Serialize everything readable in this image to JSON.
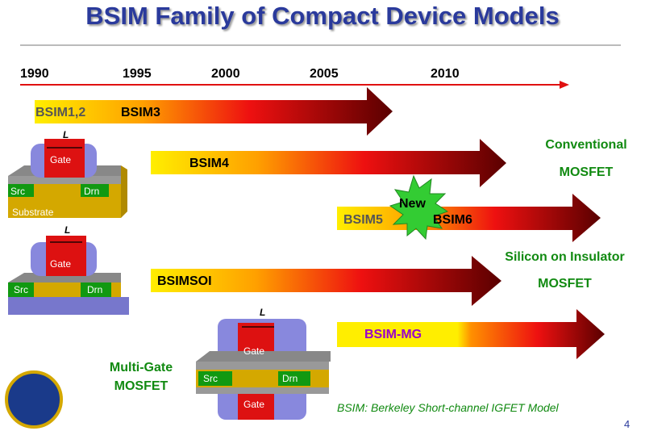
{
  "title": "BSIM Family of Compact Device Models",
  "years": [
    "1990",
    "1995",
    "2000",
    "2005",
    "2010"
  ],
  "models": {
    "bsim12": "BSIM1,2",
    "bsim3": "BSIM3",
    "bsim4": "BSIM4",
    "bsim5": "BSIM5",
    "bsim6": "BSIM6",
    "bsimsoi": "BSIMSOI",
    "bsimmg": "BSIM-MG"
  },
  "new_badge": "New",
  "categories": {
    "conv1": "Conventional",
    "conv2": "MOSFET",
    "soi1": "Silicon on Insulator",
    "soi2": "MOSFET",
    "mg1": "Multi-Gate",
    "mg2": "MOSFET"
  },
  "device": {
    "gate": "Gate",
    "src": "Src",
    "drn": "Drn",
    "substrate": "Substrate",
    "length": "L"
  },
  "footnote": "BSIM: Berkeley Short-channel IGFET Model",
  "page_number": "4",
  "colors": {
    "title": "#2a3a9c",
    "category": "#118a11",
    "timeline": "#e01010",
    "bsimmg": "#9900cc"
  }
}
